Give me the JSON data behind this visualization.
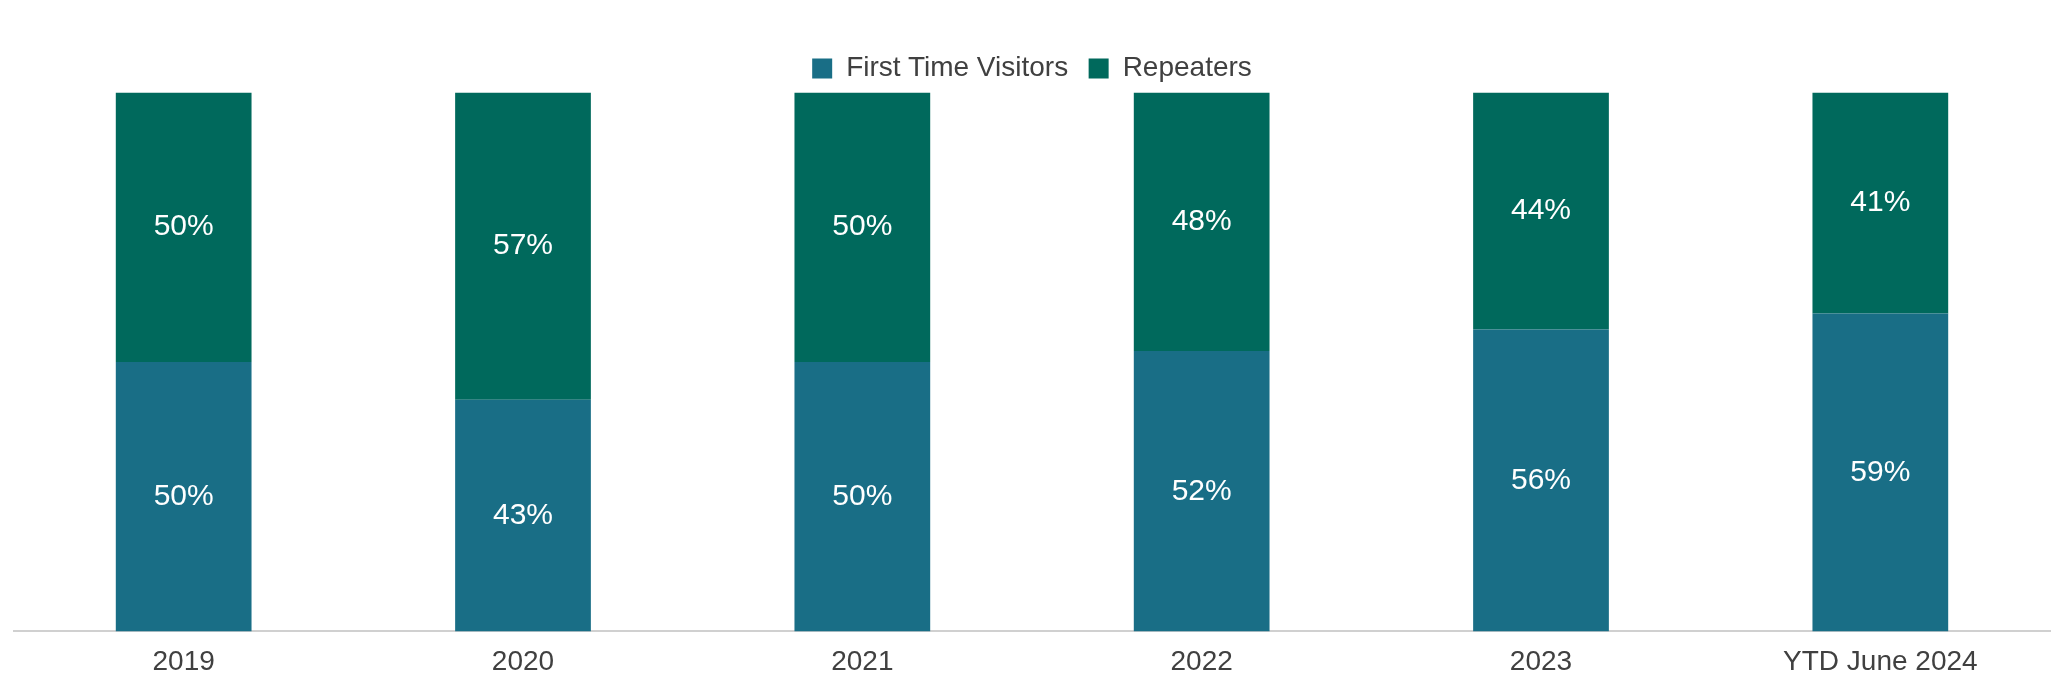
{
  "chart_data": {
    "type": "bar",
    "stacked": true,
    "legend": "top",
    "grid": false,
    "tick_labels": "x",
    "categories": [
      "2019",
      "2020",
      "2021",
      "2022",
      "2023",
      "YTD June 2024"
    ],
    "series": [
      {
        "name": "First Time Visitors",
        "color": "#196e86",
        "values": [
          50,
          43,
          50,
          52,
          56,
          59
        ],
        "value_labels": [
          "50%",
          "43%",
          "50%",
          "52%",
          "56%",
          "59%"
        ]
      },
      {
        "name": "Repeaters",
        "color": "#00695c",
        "values": [
          50,
          57,
          50,
          48,
          44,
          41
        ],
        "value_labels": [
          "50%",
          "57%",
          "50%",
          "48%",
          "44%",
          "41%"
        ]
      }
    ]
  }
}
